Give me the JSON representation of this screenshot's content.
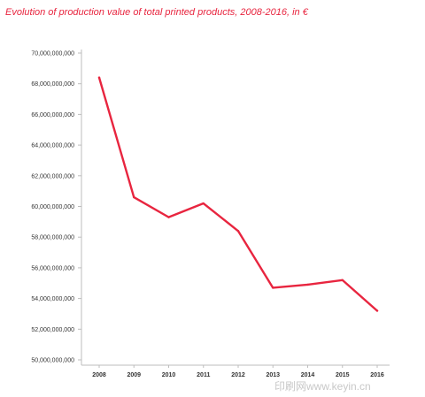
{
  "watermark": "印刷网www.keyin.cn",
  "colors": {
    "line": "#e8253f",
    "title": "#e8253f",
    "axis": "#bdbdbd",
    "grid": "#d8d8d8"
  },
  "chart_data": {
    "type": "line",
    "title": "Evolution of production value of total printed products, 2008-2016, in €",
    "xlabel": "",
    "ylabel": "",
    "categories": [
      "2008",
      "2009",
      "2010",
      "2011",
      "2012",
      "2013",
      "2014",
      "2015",
      "2016"
    ],
    "series": [
      {
        "values": [
          68400000000,
          60600000000,
          59300000000,
          60200000000,
          58400000000,
          54700000000,
          54900000000,
          55200000000,
          53200000000
        ]
      }
    ],
    "ylim": [
      50000000000,
      70000000000
    ],
    "yticks": [
      "50,000,000,000",
      "52,000,000,000",
      "54,000,000,000",
      "56,000,000,000",
      "58,000,000,000",
      "60,000,000,000",
      "62,000,000,000",
      "64,000,000,000",
      "66,000,000,000",
      "68,000,000,000",
      "70,000,000,000"
    ],
    "grid": false,
    "legend": "none"
  }
}
